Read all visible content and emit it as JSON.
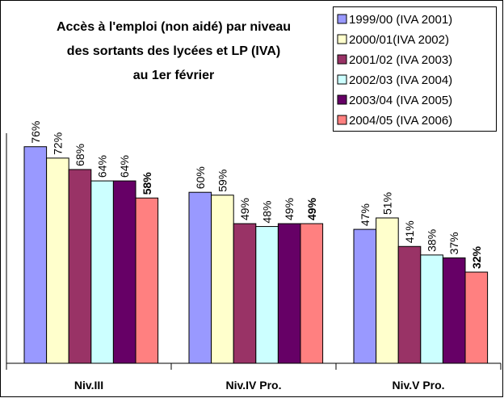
{
  "chart_data": {
    "type": "bar",
    "title": [
      "Accès à l'emploi (non aidé) par niveau",
      "des sortants des lycées et LP (IVA)",
      "au 1er février"
    ],
    "categories": [
      "Niv.III",
      "Niv.IV Pro.",
      "Niv.V Pro."
    ],
    "series": [
      {
        "name": "1999/00 (IVA 2001)",
        "color": "#9999ff",
        "values": [
          76,
          60,
          47
        ],
        "value_labels": [
          "76%",
          "60%",
          "47%"
        ]
      },
      {
        "name": "2000/01(IVA 2002)",
        "color": "#ffffcc",
        "values": [
          72,
          59,
          51
        ],
        "value_labels": [
          "72%",
          "59%",
          "51%"
        ]
      },
      {
        "name": "2001/02 (IVA 2003)",
        "color": "#993366",
        "values": [
          68,
          49,
          41
        ],
        "value_labels": [
          "68%",
          "49%",
          "41%"
        ]
      },
      {
        "name": "2002/03 (IVA 2004)",
        "color": "#ccffff",
        "values": [
          64,
          48,
          38
        ],
        "value_labels": [
          "64%",
          "48%",
          "38%"
        ]
      },
      {
        "name": "2003/04 (IVA 2005)",
        "color": "#660066",
        "values": [
          64,
          49,
          37
        ],
        "value_labels": [
          "64%",
          "49%",
          "37%"
        ]
      },
      {
        "name": "2004/05 (IVA 2006)",
        "color": "#ff8080",
        "values": [
          58,
          49,
          32
        ],
        "value_labels": [
          "58%",
          "49%",
          "32%"
        ],
        "bold_labels": true
      }
    ],
    "legend": "top-right"
  }
}
